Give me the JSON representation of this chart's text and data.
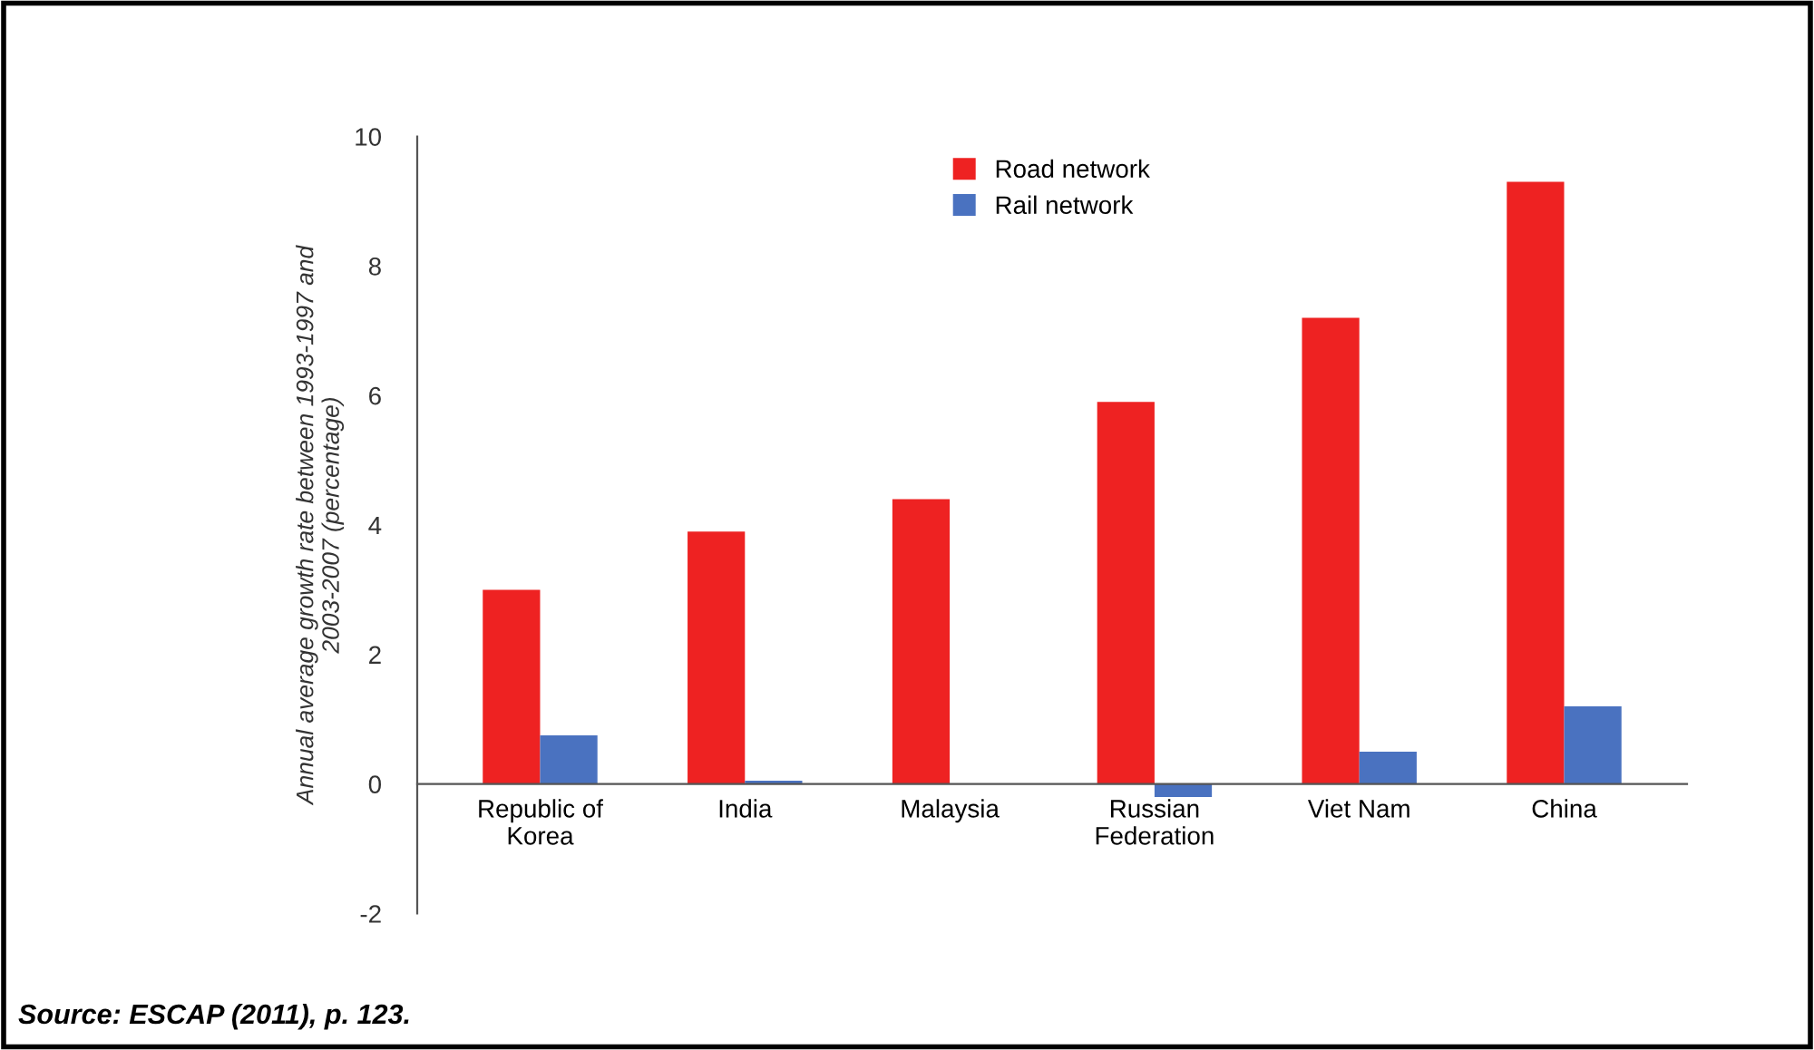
{
  "chart_data": {
    "type": "bar",
    "ylabel": "Annual average growth rate between 1993-1997 and\n2003-2007 (percentage)",
    "categories": [
      "Republic of\nKorea",
      "India",
      "Malaysia",
      "Russian\nFederation",
      "Viet Nam",
      "China"
    ],
    "series": [
      {
        "name": "Road network",
        "color": "#ee2222",
        "values": [
          3.0,
          3.9,
          4.4,
          5.9,
          7.2,
          9.3
        ]
      },
      {
        "name": "Rail network",
        "color": "#4a72c0",
        "values": [
          0.75,
          0.05,
          null,
          -0.2,
          0.5,
          1.2
        ]
      }
    ],
    "ylim": [
      -2,
      10
    ],
    "yticks": [
      -2,
      0,
      2,
      4,
      6,
      8,
      10
    ],
    "grid": false,
    "legend": "top",
    "annotations": [
      "Source: ESCAP (2011), p. 123."
    ]
  }
}
